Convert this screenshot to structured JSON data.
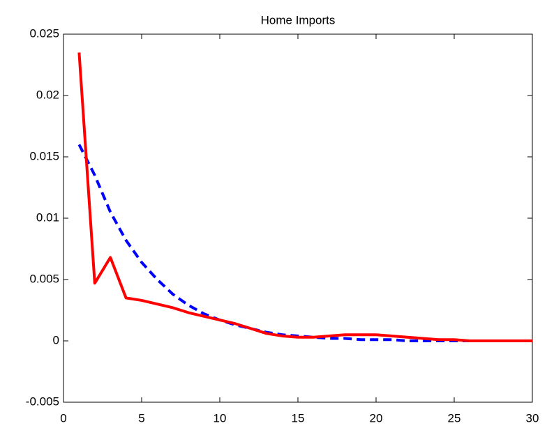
{
  "chart_data": {
    "type": "line",
    "title": "Home Imports",
    "x": [
      1,
      2,
      3,
      4,
      5,
      6,
      7,
      8,
      9,
      10,
      11,
      12,
      13,
      14,
      15,
      16,
      17,
      18,
      19,
      20,
      21,
      22,
      23,
      24,
      25,
      26,
      27,
      28,
      29,
      30
    ],
    "series": [
      {
        "color": "#0000ff",
        "dash": true,
        "values": [
          0.016,
          0.0135,
          0.0105,
          0.0082,
          0.0064,
          0.005,
          0.0038,
          0.0029,
          0.0022,
          0.0017,
          0.0013,
          0.001,
          0.0007,
          0.0005,
          0.0004,
          0.0003,
          0.0002,
          0.0002,
          0.0001,
          0.0001,
          0.0001,
          0,
          0,
          0,
          0,
          0,
          0,
          0,
          0,
          0
        ]
      },
      {
        "color": "#ff0000",
        "dash": false,
        "values": [
          0.0235,
          0.0047,
          0.0068,
          0.0035,
          0.0033,
          0.003,
          0.0027,
          0.0023,
          0.002,
          0.0017,
          0.0014,
          0.001,
          0.0006,
          0.0004,
          0.0003,
          0.0003,
          0.0004,
          0.0005,
          0.0005,
          0.0005,
          0.0004,
          0.0003,
          0.0002,
          0.0001,
          0.0001,
          0,
          0,
          0,
          0,
          0
        ]
      }
    ],
    "xlim": [
      0,
      30
    ],
    "xticks": [
      0,
      5,
      10,
      15,
      20,
      25,
      30
    ],
    "ylim": [
      -0.005,
      0.025
    ],
    "yticks": [
      -0.005,
      0,
      0.005,
      0.01,
      0.015,
      0.02,
      0.025
    ]
  }
}
